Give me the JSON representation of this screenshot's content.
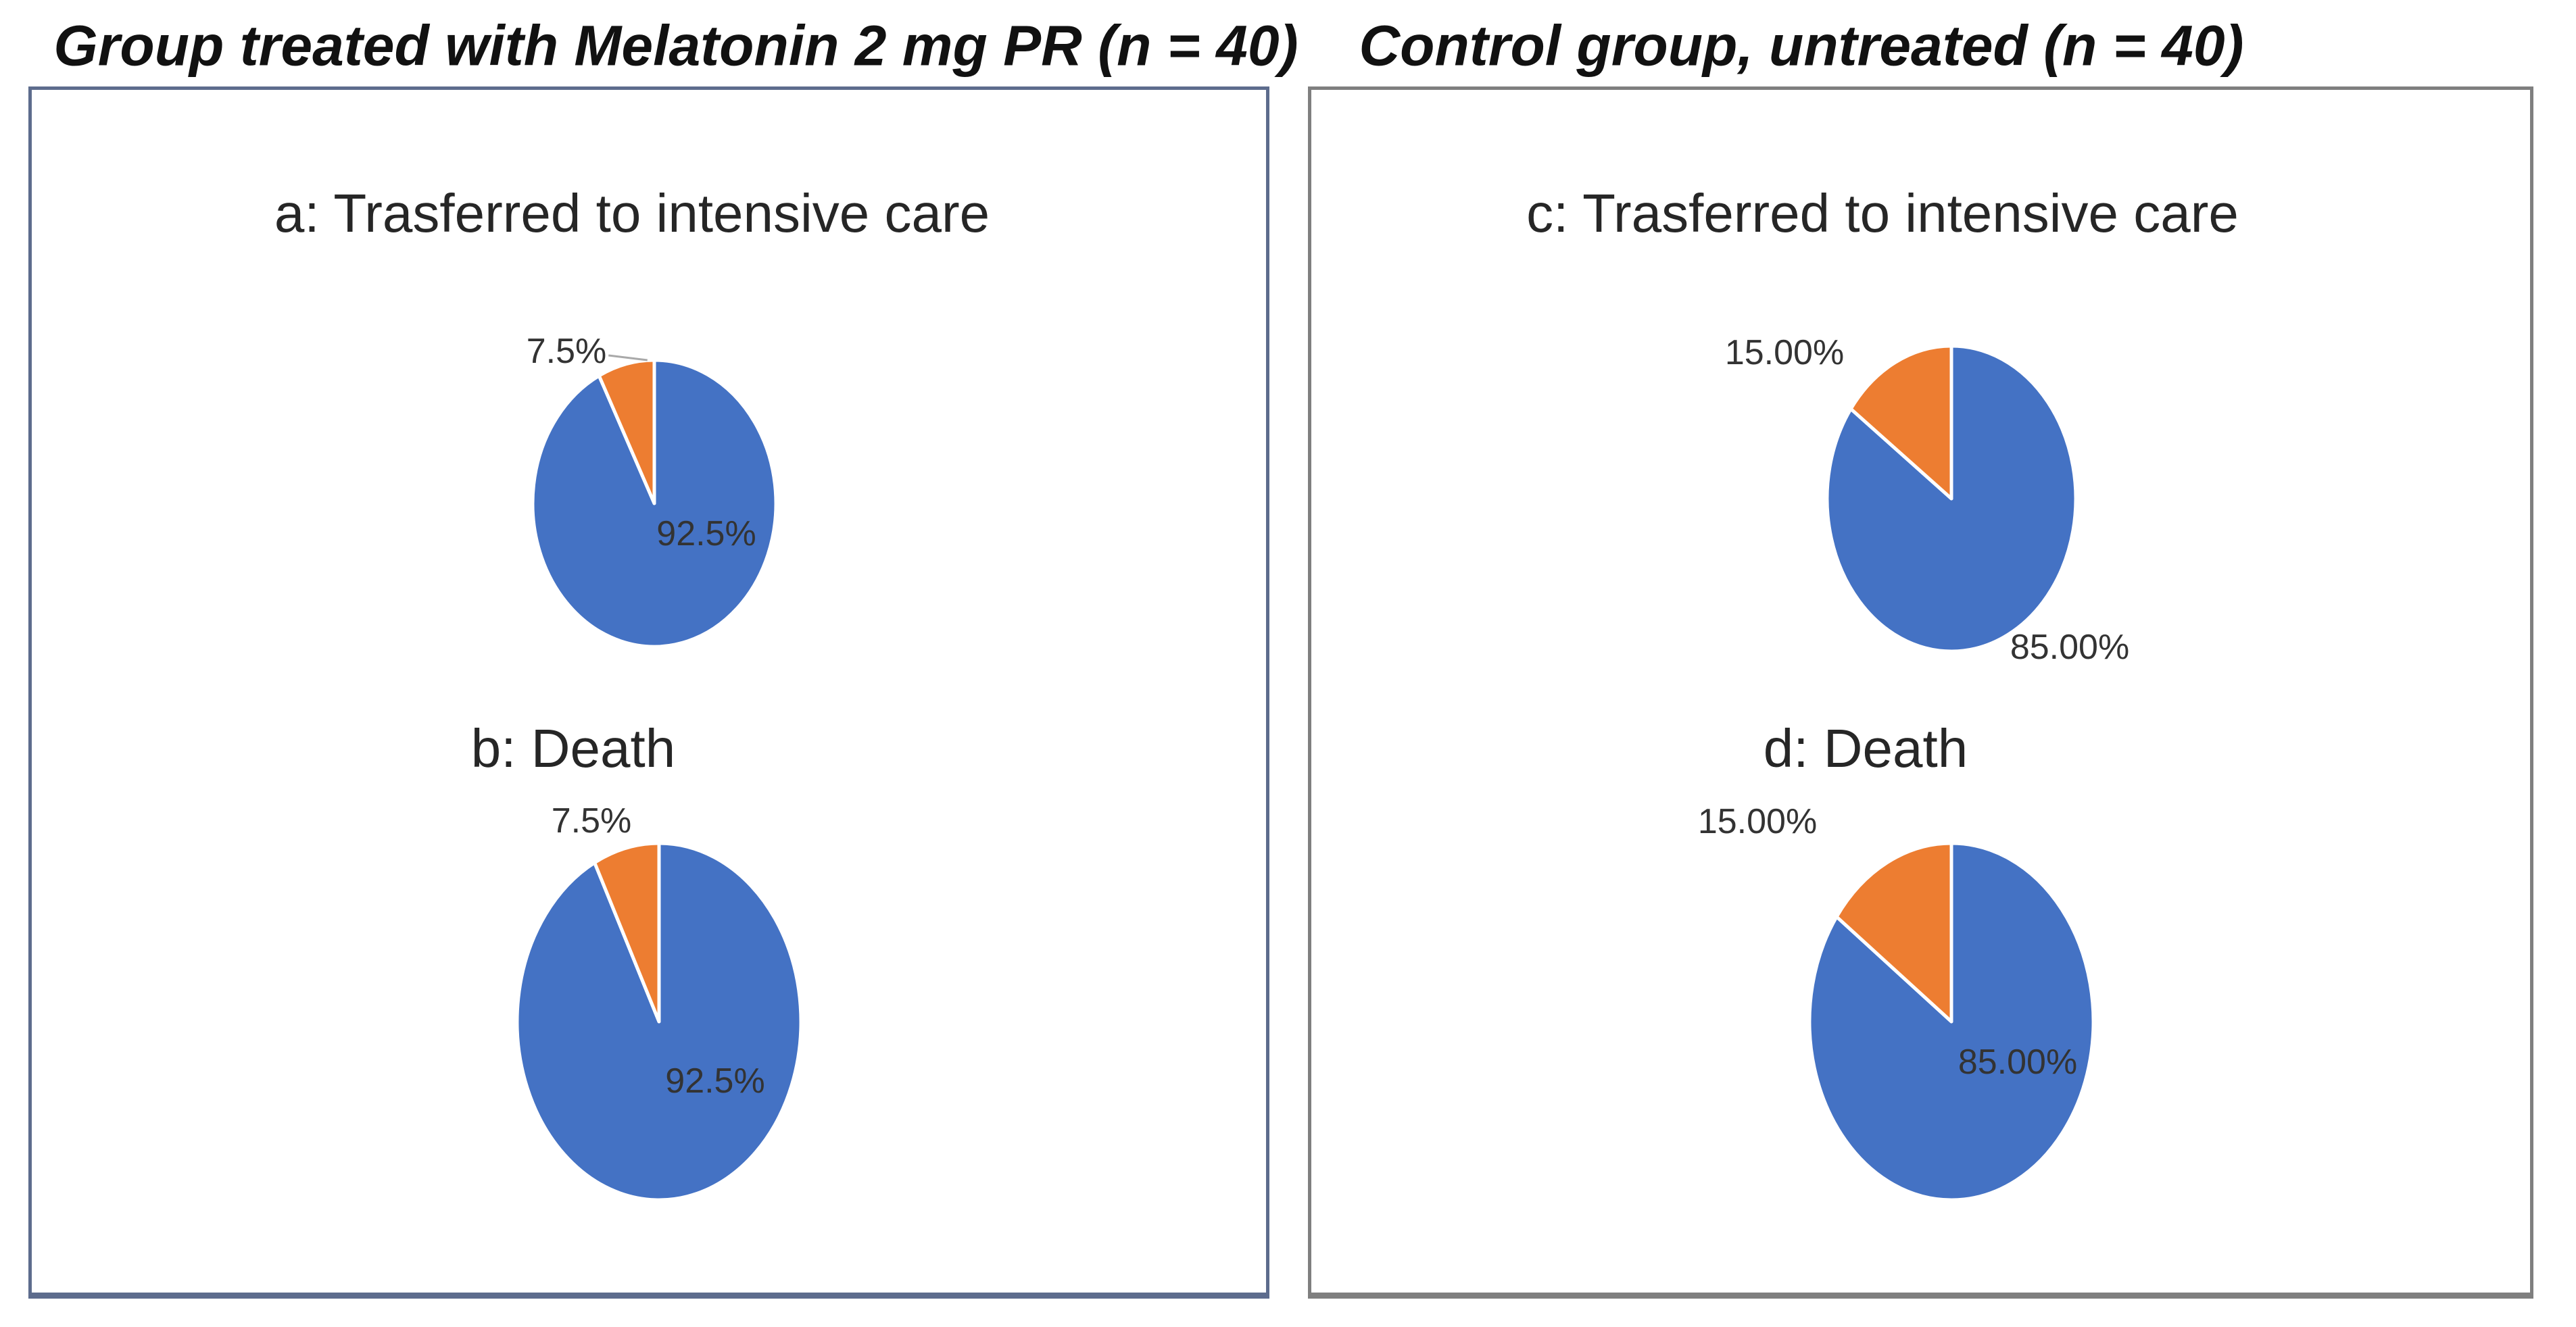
{
  "figure": {
    "panels": [
      {
        "title": "Group treated with Melatonin 2 mg PR (n = 40)",
        "border_color": "#5d6c8d",
        "chart_ids": [
          "a",
          "b"
        ]
      },
      {
        "title": "Control group, untreated (n = 40)",
        "border_color": "#7f7f7f",
        "chart_ids": [
          "c",
          "d"
        ]
      }
    ],
    "colors": {
      "slice_blue": "#4472C4",
      "slice_orange": "#ED7D31"
    }
  },
  "chart_data": [
    {
      "type": "pie",
      "id": "a",
      "panel": "Group treated with Melatonin 2 mg PR (n = 40)",
      "title": "a: Trasferred to intensive care",
      "start_angle_deg": 0,
      "direction": "clockwise",
      "slices": [
        {
          "label": "92.5%",
          "value": 92.5,
          "color": "#4472C4",
          "label_position": "inside"
        },
        {
          "label": "7.5%",
          "value": 7.5,
          "color": "#ED7D31",
          "label_position": "outside"
        }
      ]
    },
    {
      "type": "pie",
      "id": "b",
      "panel": "Group treated with Melatonin 2 mg PR (n = 40)",
      "title": "b: Death",
      "start_angle_deg": 0,
      "direction": "clockwise",
      "slices": [
        {
          "label": "92.5%",
          "value": 92.5,
          "color": "#4472C4",
          "label_position": "inside"
        },
        {
          "label": "7.5%",
          "value": 7.5,
          "color": "#ED7D31",
          "label_position": "outside"
        }
      ]
    },
    {
      "type": "pie",
      "id": "c",
      "panel": "Control group, untreated (n = 40)",
      "title": "c: Trasferred to intensive care",
      "start_angle_deg": 0,
      "direction": "clockwise",
      "slices": [
        {
          "label": "85.00%",
          "value": 85,
          "color": "#4472C4",
          "label_position": "outside"
        },
        {
          "label": "15.00%",
          "value": 15,
          "color": "#ED7D31",
          "label_position": "outside"
        }
      ]
    },
    {
      "type": "pie",
      "id": "d",
      "panel": "Control group, untreated (n = 40)",
      "title": "d: Death",
      "start_angle_deg": 0,
      "direction": "clockwise",
      "slices": [
        {
          "label": "85.00%",
          "value": 85,
          "color": "#4472C4",
          "label_position": "inside"
        },
        {
          "label": "15.00%",
          "value": 15,
          "color": "#ED7D31",
          "label_position": "outside"
        }
      ]
    }
  ]
}
